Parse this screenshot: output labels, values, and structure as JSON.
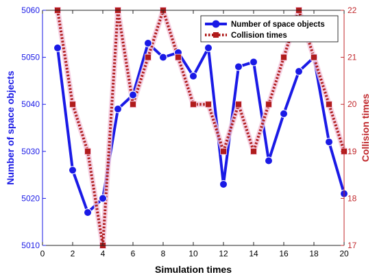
{
  "chart_data": {
    "type": "line",
    "xlabel": "Simulation times",
    "ylabel_left": "Number of space objects",
    "ylabel_right": "Collision times",
    "xlim": [
      0,
      20
    ],
    "ylim_left": [
      5010,
      5060
    ],
    "ylim_right": [
      17,
      22
    ],
    "x_ticks": [
      0,
      2,
      4,
      6,
      8,
      10,
      12,
      14,
      16,
      18,
      20
    ],
    "y_left_ticks": [
      5010,
      5020,
      5030,
      5040,
      5050,
      5060
    ],
    "y_right_ticks": [
      17,
      18,
      19,
      20,
      21,
      22
    ],
    "grid": false,
    "legend_position": "top-right",
    "x": [
      1,
      2,
      3,
      4,
      5,
      6,
      7,
      8,
      9,
      10,
      11,
      12,
      13,
      14,
      15,
      16,
      17,
      18,
      19,
      20
    ],
    "series": [
      {
        "name": "Number of space objects",
        "axis": "left",
        "color": "#1a1ae6",
        "marker": "circle",
        "line_style": "solid",
        "values": [
          5052,
          5026,
          5017,
          5020,
          5039,
          5042,
          5053,
          5050,
          5051,
          5046,
          5052,
          5023,
          5048,
          5049,
          5028,
          5038,
          5047,
          5050,
          5032,
          5021
        ]
      },
      {
        "name": "Collision times",
        "axis": "right",
        "color": "#b01c1c",
        "marker": "square",
        "line_style": "dotted",
        "values": [
          22,
          20,
          19,
          17,
          22,
          20,
          21,
          22,
          21,
          20,
          20,
          19,
          20,
          19,
          20,
          21,
          22,
          21,
          20,
          19
        ]
      }
    ]
  }
}
